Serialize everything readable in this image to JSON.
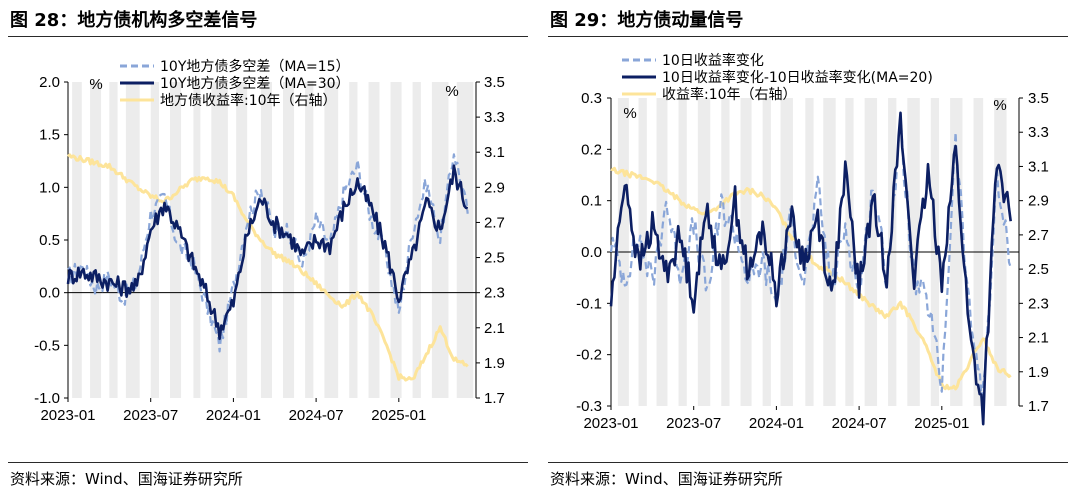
{
  "figures": [
    {
      "title": "图 28：地方债机构多空差信号",
      "source": "资料来源：Wind、国海证券研究所"
    },
    {
      "title": "图 29：地方债动量信号",
      "source": "资料来源：Wind、国海证券研究所"
    }
  ],
  "chart_data": [
    {
      "type": "line",
      "title": "图 28：地方债机构多空差信号",
      "x_ticks": [
        "2023-01",
        "2023-07",
        "2024-01",
        "2024-07",
        "2025-01"
      ],
      "x_range": [
        "2023-01",
        "2025-06"
      ],
      "left_unit": "%",
      "right_unit": "%",
      "ylim_left": [
        -1.0,
        2.0
      ],
      "yticks_left": [
        "2.0",
        "1.5",
        "1.0",
        "0.5",
        "0.0",
        "-0.5",
        "-1.0"
      ],
      "ylim_right": [
        1.7,
        3.5
      ],
      "yticks_right": [
        "3.5",
        "3.3",
        "3.1",
        "2.9",
        "2.7",
        "2.5",
        "2.3",
        "2.1",
        "1.9",
        "1.7"
      ],
      "grid": false,
      "legend_position": "top-center",
      "shaded_background": "gray bands mark signal periods",
      "series": [
        {
          "name": "10Y地方债多空差（MA=15）",
          "axis": "left",
          "color": "#8aa6d8",
          "style": "dashed",
          "points": [
            [
              "2023-01",
              0.15
            ],
            [
              "2023-02",
              0.25
            ],
            [
              "2023-03",
              0.05
            ],
            [
              "2023-04",
              0.15
            ],
            [
              "2023-05",
              -0.05
            ],
            [
              "2023-06",
              0.1
            ],
            [
              "2023-07",
              0.75
            ],
            [
              "2023-08",
              0.9
            ],
            [
              "2023-09",
              0.45
            ],
            [
              "2023-10",
              0.3
            ],
            [
              "2023-11",
              -0.1
            ],
            [
              "2023-12",
              -0.5
            ],
            [
              "2024-01",
              0.05
            ],
            [
              "2024-02",
              0.7
            ],
            [
              "2024-03",
              1.0
            ],
            [
              "2024-04",
              0.55
            ],
            [
              "2024-05",
              0.6
            ],
            [
              "2024-06",
              0.25
            ],
            [
              "2024-07",
              0.7
            ],
            [
              "2024-08",
              0.45
            ],
            [
              "2024-09",
              0.95
            ],
            [
              "2024-10",
              1.2
            ],
            [
              "2024-11",
              0.7
            ],
            [
              "2024-12",
              0.4
            ],
            [
              "2025-01",
              -0.2
            ],
            [
              "2025-02",
              0.6
            ],
            [
              "2025-03",
              1.05
            ],
            [
              "2025-04",
              0.5
            ],
            [
              "2025-05",
              1.35
            ],
            [
              "2025-06",
              0.75
            ]
          ]
        },
        {
          "name": "10Y地方债多空差（MA=30）",
          "axis": "left",
          "color": "#0c1f63",
          "style": "solid",
          "points": [
            [
              "2023-01",
              0.15
            ],
            [
              "2023-02",
              0.2
            ],
            [
              "2023-03",
              0.15
            ],
            [
              "2023-04",
              0.1
            ],
            [
              "2023-05",
              0.05
            ],
            [
              "2023-06",
              0.05
            ],
            [
              "2023-07",
              0.6
            ],
            [
              "2023-08",
              0.85
            ],
            [
              "2023-09",
              0.6
            ],
            [
              "2023-10",
              0.3
            ],
            [
              "2023-11",
              0.0
            ],
            [
              "2023-12",
              -0.35
            ],
            [
              "2024-01",
              -0.1
            ],
            [
              "2024-02",
              0.55
            ],
            [
              "2024-03",
              0.9
            ],
            [
              "2024-04",
              0.65
            ],
            [
              "2024-05",
              0.55
            ],
            [
              "2024-06",
              0.35
            ],
            [
              "2024-07",
              0.5
            ],
            [
              "2024-08",
              0.45
            ],
            [
              "2024-09",
              0.8
            ],
            [
              "2024-10",
              1.05
            ],
            [
              "2024-11",
              0.8
            ],
            [
              "2024-12",
              0.45
            ],
            [
              "2025-01",
              -0.05
            ],
            [
              "2025-02",
              0.35
            ],
            [
              "2025-03",
              0.85
            ],
            [
              "2025-04",
              0.6
            ],
            [
              "2025-05",
              1.15
            ],
            [
              "2025-06",
              0.8
            ]
          ]
        },
        {
          "name": "地方债收益率:10年（右轴）",
          "axis": "right",
          "color": "#fde49a",
          "style": "solid",
          "points": [
            [
              "2023-01",
              3.08
            ],
            [
              "2023-02",
              3.06
            ],
            [
              "2023-03",
              3.04
            ],
            [
              "2023-04",
              3.02
            ],
            [
              "2023-05",
              2.96
            ],
            [
              "2023-06",
              2.9
            ],
            [
              "2023-07",
              2.85
            ],
            [
              "2023-08",
              2.82
            ],
            [
              "2023-09",
              2.88
            ],
            [
              "2023-10",
              2.94
            ],
            [
              "2023-11",
              2.96
            ],
            [
              "2023-12",
              2.93
            ],
            [
              "2024-01",
              2.85
            ],
            [
              "2024-02",
              2.7
            ],
            [
              "2024-03",
              2.6
            ],
            [
              "2024-04",
              2.52
            ],
            [
              "2024-05",
              2.48
            ],
            [
              "2024-06",
              2.42
            ],
            [
              "2024-07",
              2.35
            ],
            [
              "2024-08",
              2.28
            ],
            [
              "2024-09",
              2.22
            ],
            [
              "2024-10",
              2.3
            ],
            [
              "2024-11",
              2.18
            ],
            [
              "2024-12",
              2.02
            ],
            [
              "2025-01",
              1.82
            ],
            [
              "2025-02",
              1.8
            ],
            [
              "2025-03",
              1.95
            ],
            [
              "2025-04",
              2.1
            ],
            [
              "2025-05",
              1.92
            ],
            [
              "2025-06",
              1.88
            ]
          ]
        }
      ]
    },
    {
      "type": "line",
      "title": "图 29：地方债动量信号",
      "x_ticks": [
        "2023-01",
        "2023-07",
        "2024-01",
        "2024-07",
        "2025-01"
      ],
      "x_range": [
        "2023-01",
        "2025-06"
      ],
      "left_unit": "%",
      "right_unit": "%",
      "ylim_left": [
        -0.3,
        0.3
      ],
      "yticks_left": [
        "0.3",
        "0.2",
        "0.1",
        "0.0",
        "-0.1",
        "-0.2",
        "-0.3"
      ],
      "ylim_right": [
        1.7,
        3.5
      ],
      "yticks_right": [
        "3.5",
        "3.3",
        "3.1",
        "2.9",
        "2.7",
        "2.5",
        "2.3",
        "2.1",
        "1.9",
        "1.7"
      ],
      "grid": false,
      "legend_position": "top-left",
      "shaded_background": "gray bands mark signal periods",
      "series": [
        {
          "name": "10日收益率变化",
          "axis": "left",
          "color": "#8aa6d8",
          "style": "dashed",
          "points": [
            [
              "2023-01",
              0.02
            ],
            [
              "2023-02",
              -0.05
            ],
            [
              "2023-03",
              0.03
            ],
            [
              "2023-04",
              -0.06
            ],
            [
              "2023-05",
              0.1
            ],
            [
              "2023-06",
              -0.04
            ],
            [
              "2023-07",
              0.05
            ],
            [
              "2023-08",
              -0.08
            ],
            [
              "2023-09",
              0.09
            ],
            [
              "2023-10",
              0.04
            ],
            [
              "2023-11",
              -0.06
            ],
            [
              "2023-12",
              -0.02
            ],
            [
              "2024-01",
              -0.1
            ],
            [
              "2024-02",
              0.06
            ],
            [
              "2024-03",
              -0.05
            ],
            [
              "2024-04",
              0.12
            ],
            [
              "2024-05",
              -0.07
            ],
            [
              "2024-06",
              0.05
            ],
            [
              "2024-07",
              -0.08
            ],
            [
              "2024-08",
              0.13
            ],
            [
              "2024-09",
              -0.05
            ],
            [
              "2024-10",
              0.24
            ],
            [
              "2024-11",
              -0.06
            ],
            [
              "2024-12",
              -0.1
            ],
            [
              "2025-01",
              -0.26
            ],
            [
              "2025-02",
              0.22
            ],
            [
              "2025-03",
              -0.12
            ],
            [
              "2025-04",
              -0.28
            ],
            [
              "2025-05",
              0.14
            ],
            [
              "2025-06",
              -0.03
            ]
          ]
        },
        {
          "name": "10日收益率变化-10日收益率变化(MA=20)",
          "axis": "left",
          "color": "#0c1f63",
          "style": "solid",
          "points": [
            [
              "2023-01",
              -0.1
            ],
            [
              "2023-02",
              0.15
            ],
            [
              "2023-03",
              -0.03
            ],
            [
              "2023-04",
              0.05
            ],
            [
              "2023-05",
              -0.04
            ],
            [
              "2023-06",
              0.03
            ],
            [
              "2023-07",
              -0.09
            ],
            [
              "2023-08",
              0.09
            ],
            [
              "2023-09",
              -0.05
            ],
            [
              "2023-10",
              0.1
            ],
            [
              "2023-11",
              -0.05
            ],
            [
              "2023-12",
              0.05
            ],
            [
              "2024-01",
              -0.08
            ],
            [
              "2024-02",
              0.07
            ],
            [
              "2024-03",
              -0.02
            ],
            [
              "2024-04",
              0.07
            ],
            [
              "2024-05",
              -0.09
            ],
            [
              "2024-06",
              0.15
            ],
            [
              "2024-07",
              -0.07
            ],
            [
              "2024-08",
              0.1
            ],
            [
              "2024-09",
              -0.04
            ],
            [
              "2024-10",
              0.25
            ],
            [
              "2024-11",
              -0.05
            ],
            [
              "2024-12",
              0.15
            ],
            [
              "2025-01",
              -0.05
            ],
            [
              "2025-02",
              0.2
            ],
            [
              "2025-03",
              -0.16
            ],
            [
              "2025-04",
              -0.31
            ],
            [
              "2025-05",
              0.17
            ],
            [
              "2025-06",
              0.06
            ]
          ]
        },
        {
          "name": "收益率:10年（右轴）",
          "axis": "right",
          "color": "#fde49a",
          "style": "solid",
          "points": [
            [
              "2023-01",
              3.08
            ],
            [
              "2023-02",
              3.06
            ],
            [
              "2023-03",
              3.04
            ],
            [
              "2023-04",
              3.02
            ],
            [
              "2023-05",
              2.96
            ],
            [
              "2023-06",
              2.9
            ],
            [
              "2023-07",
              2.85
            ],
            [
              "2023-08",
              2.82
            ],
            [
              "2023-09",
              2.88
            ],
            [
              "2023-10",
              2.94
            ],
            [
              "2023-11",
              2.96
            ],
            [
              "2023-12",
              2.93
            ],
            [
              "2024-01",
              2.85
            ],
            [
              "2024-02",
              2.7
            ],
            [
              "2024-03",
              2.6
            ],
            [
              "2024-04",
              2.52
            ],
            [
              "2024-05",
              2.48
            ],
            [
              "2024-06",
              2.42
            ],
            [
              "2024-07",
              2.35
            ],
            [
              "2024-08",
              2.28
            ],
            [
              "2024-09",
              2.22
            ],
            [
              "2024-10",
              2.3
            ],
            [
              "2024-11",
              2.18
            ],
            [
              "2024-12",
              2.02
            ],
            [
              "2025-01",
              1.82
            ],
            [
              "2025-02",
              1.8
            ],
            [
              "2025-03",
              1.95
            ],
            [
              "2025-04",
              2.1
            ],
            [
              "2025-05",
              1.92
            ],
            [
              "2025-06",
              1.88
            ]
          ]
        }
      ]
    }
  ]
}
